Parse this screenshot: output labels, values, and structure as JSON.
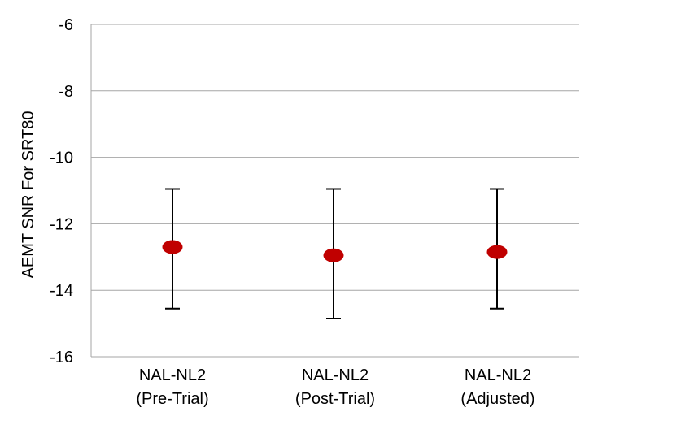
{
  "chart_data": {
    "type": "scatter",
    "title": "",
    "xlabel": "",
    "ylabel": "AEMT SNR For SRT80",
    "ylim": [
      -16,
      -6
    ],
    "yticks": [
      "-6",
      "-8",
      "-10",
      "-12",
      "-14",
      "-16"
    ],
    "grid": true,
    "legend": "none",
    "categories": [
      [
        "NAL-NL2",
        "(Pre-Trial)"
      ],
      [
        "NAL-NL2",
        "(Post-Trial)"
      ],
      [
        "NAL-NL2",
        "(Adjusted)"
      ]
    ],
    "series": [
      {
        "values": [
          -12.7,
          -12.95,
          -12.85
        ],
        "error_high": [
          -10.95,
          -10.95,
          -10.95
        ],
        "error_low": [
          -14.55,
          -14.85,
          -14.55
        ]
      }
    ],
    "colors": {
      "marker": "#c00000",
      "error_bar": "#000000",
      "gridline": "#a6a6a6"
    }
  }
}
